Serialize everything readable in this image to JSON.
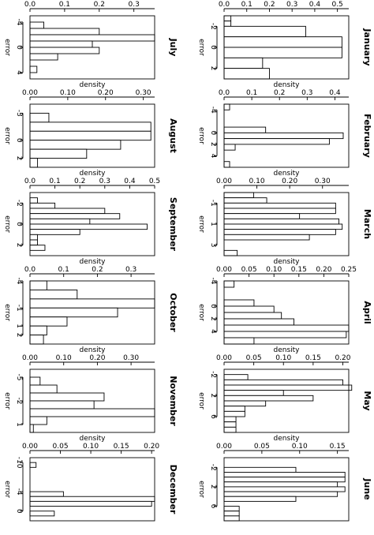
{
  "density_label": "density",
  "error_label": "error",
  "chart_data": [
    {
      "type": "bar",
      "orientation": "horizontal",
      "title": "January",
      "xlabel": "density",
      "ylabel": "error",
      "density_ticks": [
        "0.0",
        "0.1",
        "0.2",
        "0.3",
        "0.4",
        "0.5"
      ],
      "density_lim": [
        0,
        0.55
      ],
      "error_ticks": [
        "-2",
        "0",
        "2"
      ],
      "error_tick_values": [
        -2,
        0,
        2
      ],
      "error_lim": [
        -3,
        3
      ],
      "bins": [
        [
          -3,
          -2.5
        ],
        [
          -2.5,
          -2
        ],
        [
          -2,
          -1
        ],
        [
          -1,
          0
        ],
        [
          0,
          1
        ],
        [
          1,
          2
        ],
        [
          2,
          3
        ]
      ],
      "values": [
        0.03,
        0.03,
        0.36,
        0.52,
        0.52,
        0.17,
        0.2
      ]
    },
    {
      "type": "bar",
      "orientation": "horizontal",
      "title": "February",
      "xlabel": "density",
      "ylabel": "error",
      "density_ticks": [
        "0.0",
        "0.1",
        "0.2",
        "0.3",
        "0.4"
      ],
      "density_lim": [
        0,
        0.45
      ],
      "error_ticks": [
        "-4",
        "0",
        "2",
        "4"
      ],
      "error_tick_values": [
        -4,
        0,
        2,
        4
      ],
      "error_lim": [
        -5,
        6
      ],
      "bins": [
        [
          -5,
          -4
        ],
        [
          -4,
          -3
        ],
        [
          -3,
          -2
        ],
        [
          -2,
          -1
        ],
        [
          -1,
          0
        ],
        [
          0,
          1
        ],
        [
          1,
          2
        ],
        [
          2,
          3
        ],
        [
          3,
          4
        ],
        [
          4,
          5
        ],
        [
          5,
          6
        ]
      ],
      "values": [
        0.02,
        0,
        0,
        0,
        0.15,
        0.43,
        0.38,
        0.04,
        0,
        0,
        0.02
      ]
    },
    {
      "type": "bar",
      "orientation": "horizontal",
      "title": "March",
      "xlabel": "density",
      "ylabel": "error",
      "density_ticks": [
        "0.00",
        "0.10",
        "0.20",
        "0.30"
      ],
      "density_lim": [
        0,
        0.38
      ],
      "error_ticks": [
        "-1",
        "1",
        "3"
      ],
      "error_tick_values": [
        -1,
        1,
        3
      ],
      "error_lim": [
        -2,
        4
      ],
      "bins": [
        [
          -2,
          -1.5
        ],
        [
          -1.5,
          -1
        ],
        [
          -1,
          -0.5
        ],
        [
          -0.5,
          0
        ],
        [
          0,
          0.5
        ],
        [
          0.5,
          1
        ],
        [
          1,
          1.5
        ],
        [
          1.5,
          2
        ],
        [
          2,
          2.5
        ],
        [
          2.5,
          3
        ],
        [
          3,
          3.5
        ],
        [
          3.5,
          4
        ]
      ],
      "values": [
        0.09,
        0.13,
        0.34,
        0.34,
        0.23,
        0.35,
        0.36,
        0.34,
        0.26,
        0,
        0,
        0.04
      ]
    },
    {
      "type": "bar",
      "orientation": "horizontal",
      "title": "April",
      "xlabel": "density",
      "ylabel": "error",
      "density_ticks": [
        "0.00",
        "0.05",
        "0.10",
        "0.15",
        "0.20",
        "0.25"
      ],
      "density_lim": [
        0,
        0.25
      ],
      "error_ticks": [
        "-4",
        "0",
        "2",
        "4"
      ],
      "error_tick_values": [
        -4,
        0,
        2,
        4
      ],
      "error_lim": [
        -4,
        6
      ],
      "bins": [
        [
          -4,
          -3
        ],
        [
          -3,
          -2
        ],
        [
          -2,
          -1
        ],
        [
          -1,
          0
        ],
        [
          0,
          1
        ],
        [
          1,
          2
        ],
        [
          2,
          3
        ],
        [
          3,
          4
        ],
        [
          4,
          5
        ],
        [
          5,
          6
        ]
      ],
      "values": [
        0.02,
        0,
        0,
        0.06,
        0.1,
        0.115,
        0.14,
        0.25,
        0.245,
        0.06
      ]
    },
    {
      "type": "bar",
      "orientation": "horizontal",
      "title": "May",
      "xlabel": "density",
      "ylabel": "error",
      "density_ticks": [
        "0.00",
        "0.05",
        "0.10",
        "0.15",
        "0.20"
      ],
      "density_lim": [
        0,
        0.21
      ],
      "error_ticks": [
        "-2",
        "2",
        "6"
      ],
      "error_tick_values": [
        -2,
        2,
        6
      ],
      "error_lim": [
        -3,
        9
      ],
      "bins": [
        [
          -3,
          -2
        ],
        [
          -2,
          -1
        ],
        [
          -1,
          0
        ],
        [
          0,
          1
        ],
        [
          1,
          2
        ],
        [
          2,
          3
        ],
        [
          3,
          4
        ],
        [
          4,
          5
        ],
        [
          5,
          6
        ],
        [
          6,
          7
        ],
        [
          7,
          8
        ],
        [
          8,
          9
        ]
      ],
      "values": [
        0,
        0.04,
        0.2,
        0.215,
        0.1,
        0.15,
        0.07,
        0.035,
        0.035,
        0.02,
        0.02,
        0.02
      ]
    },
    {
      "type": "bar",
      "orientation": "horizontal",
      "title": "June",
      "xlabel": "density",
      "ylabel": "error",
      "density_ticks": [
        "0.00",
        "0.05",
        "0.10",
        "0.15"
      ],
      "density_lim": [
        0,
        0.165
      ],
      "error_ticks": [
        "-2",
        "2",
        "6"
      ],
      "error_tick_values": [
        -2,
        2,
        6
      ],
      "error_lim": [
        -4,
        9
      ],
      "bins": [
        [
          -4,
          -3
        ],
        [
          -3,
          -2
        ],
        [
          -2,
          -1
        ],
        [
          -1,
          0
        ],
        [
          0,
          1
        ],
        [
          1,
          2
        ],
        [
          2,
          3
        ],
        [
          3,
          4
        ],
        [
          4,
          5
        ],
        [
          5,
          6
        ],
        [
          6,
          7
        ],
        [
          7,
          8
        ],
        [
          8,
          9
        ]
      ],
      "values": [
        0,
        0,
        0.095,
        0.16,
        0.16,
        0.15,
        0.16,
        0.15,
        0.095,
        0,
        0.02,
        0.02,
        0.02
      ]
    },
    {
      "type": "bar",
      "orientation": "horizontal",
      "title": "July",
      "xlabel": "density",
      "ylabel": "error",
      "density_ticks": [
        "0.0",
        "0.1",
        "0.2",
        "0.3"
      ],
      "density_lim": [
        0,
        0.36
      ],
      "error_ticks": [
        "-4",
        "0",
        "4"
      ],
      "error_tick_values": [
        -4,
        0,
        4
      ],
      "error_lim": [
        -5,
        5
      ],
      "bins": [
        [
          -5,
          -4
        ],
        [
          -4,
          -3
        ],
        [
          -3,
          -2
        ],
        [
          -2,
          -1
        ],
        [
          -1,
          0
        ],
        [
          0,
          1
        ],
        [
          1,
          2
        ],
        [
          2,
          3
        ],
        [
          3,
          4
        ],
        [
          4,
          5
        ]
      ],
      "values": [
        0,
        0.04,
        0.2,
        0.36,
        0.18,
        0.2,
        0.08,
        0,
        0.02,
        0
      ]
    },
    {
      "type": "bar",
      "orientation": "horizontal",
      "title": "August",
      "xlabel": "density",
      "ylabel": "error",
      "density_ticks": [
        "0.00",
        "0.10",
        "0.20",
        "0.30"
      ],
      "density_lim": [
        0,
        0.33
      ],
      "error_ticks": [
        "-3",
        "0",
        "2"
      ],
      "error_tick_values": [
        -3,
        0,
        2
      ],
      "error_lim": [
        -4,
        3
      ],
      "bins": [
        [
          -4,
          -3
        ],
        [
          -3,
          -2
        ],
        [
          -2,
          -1
        ],
        [
          -1,
          0
        ],
        [
          0,
          1
        ],
        [
          1,
          2
        ],
        [
          2,
          3
        ]
      ],
      "values": [
        0,
        0.05,
        0.32,
        0.32,
        0.24,
        0.15,
        0.02
      ]
    },
    {
      "type": "bar",
      "orientation": "horizontal",
      "title": "September",
      "xlabel": "density",
      "ylabel": "error",
      "density_ticks": [
        "0.0",
        "0.1",
        "0.2",
        "0.3",
        "0.4",
        "0.5"
      ],
      "density_lim": [
        0,
        0.5
      ],
      "error_ticks": [
        "-2",
        "0",
        "2"
      ],
      "error_tick_values": [
        -2,
        0,
        2
      ],
      "error_lim": [
        -3,
        3
      ],
      "bins": [
        [
          -3,
          -2.5
        ],
        [
          -2.5,
          -2
        ],
        [
          -2,
          -1.5
        ],
        [
          -1.5,
          -1
        ],
        [
          -1,
          -0.5
        ],
        [
          -0.5,
          0
        ],
        [
          0,
          0.5
        ],
        [
          0.5,
          1
        ],
        [
          1,
          1.5
        ],
        [
          1.5,
          2
        ],
        [
          2,
          2.5
        ],
        [
          2.5,
          3
        ]
      ],
      "values": [
        0,
        0.03,
        0.1,
        0.3,
        0.36,
        0.24,
        0.47,
        0.2,
        0.03,
        0.03,
        0.06,
        0
      ]
    },
    {
      "type": "bar",
      "orientation": "horizontal",
      "title": "October",
      "xlabel": "density",
      "ylabel": "error",
      "density_ticks": [
        "0.0",
        "0.1",
        "0.2",
        "0.3"
      ],
      "density_lim": [
        0,
        0.37
      ],
      "error_ticks": [
        "-4",
        "-1",
        "1",
        "2"
      ],
      "error_tick_values": [
        -4,
        -1,
        1,
        2
      ],
      "error_lim": [
        -4,
        3
      ],
      "bins": [
        [
          -4,
          -3
        ],
        [
          -3,
          -2
        ],
        [
          -2,
          -1
        ],
        [
          -1,
          0
        ],
        [
          0,
          1
        ],
        [
          1,
          2
        ],
        [
          2,
          3
        ]
      ],
      "values": [
        0.05,
        0.14,
        0.37,
        0.26,
        0.11,
        0.05,
        0.04
      ]
    },
    {
      "type": "bar",
      "orientation": "horizontal",
      "title": "November",
      "xlabel": "density",
      "ylabel": "error",
      "density_ticks": [
        "0.00",
        "0.10",
        "0.20",
        "0.30"
      ],
      "density_lim": [
        0,
        0.37
      ],
      "error_ticks": [
        "-5",
        "-2",
        "1"
      ],
      "error_tick_values": [
        -5,
        -2,
        1
      ],
      "error_lim": [
        -6,
        2
      ],
      "bins": [
        [
          -6,
          -5
        ],
        [
          -5,
          -4
        ],
        [
          -4,
          -3
        ],
        [
          -3,
          -2
        ],
        [
          -2,
          -1
        ],
        [
          -1,
          0
        ],
        [
          0,
          1
        ],
        [
          1,
          2
        ]
      ],
      "values": [
        0,
        0.03,
        0.08,
        0.22,
        0.19,
        0.37,
        0.05,
        0.01
      ]
    },
    {
      "type": "bar",
      "orientation": "horizontal",
      "title": "December",
      "xlabel": "density",
      "ylabel": "error",
      "density_ticks": [
        "0.00",
        "0.05",
        "0.10",
        "0.15",
        "0.20"
      ],
      "density_lim": [
        0,
        0.205
      ],
      "error_ticks": [
        "-10",
        "-4",
        "0"
      ],
      "error_tick_values": [
        -10,
        -4,
        0
      ],
      "error_lim": [
        -11,
        2
      ],
      "bins": [
        [
          -11,
          -10
        ],
        [
          -10,
          -9
        ],
        [
          -9,
          -8
        ],
        [
          -8,
          -7
        ],
        [
          -7,
          -6
        ],
        [
          -6,
          -5
        ],
        [
          -5,
          -4
        ],
        [
          -4,
          -3
        ],
        [
          -3,
          -2
        ],
        [
          -2,
          -1
        ],
        [
          -1,
          0
        ],
        [
          0,
          1
        ],
        [
          1,
          2
        ]
      ],
      "values": [
        0,
        0.01,
        0,
        0,
        0,
        0,
        0,
        0.055,
        0.205,
        0.2,
        0,
        0.04,
        0
      ]
    }
  ]
}
